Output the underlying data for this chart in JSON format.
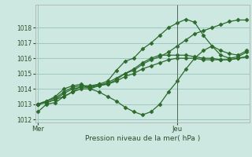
{
  "title": "",
  "xlabel": "Pression niveau de la mer( hPa )",
  "background_color": "#cde8e0",
  "grid_color": "#a0c8c0",
  "line_color": "#2d6b2d",
  "marker": "D",
  "markersize": 2.5,
  "ylim": [
    1011.8,
    1019.5
  ],
  "yticks": [
    1012,
    1013,
    1014,
    1015,
    1016,
    1017,
    1018
  ],
  "xtick_labels": [
    "Mer",
    "Jeu"
  ],
  "xtick_positions": [
    0,
    16
  ],
  "vline_x": 16,
  "n_points": 25,
  "series": [
    [
      1012.5,
      1013.0,
      1013.1,
      1013.5,
      1013.8,
      1014.2,
      1014.2,
      1014.3,
      1014.5,
      1015.2,
      1015.8,
      1016.0,
      1016.6,
      1017.0,
      1017.5,
      1018.0,
      1018.3,
      1018.55,
      1018.35,
      1017.5,
      1016.8,
      1016.2,
      1016.0,
      1016.1,
      1016.4
    ],
    [
      1013.0,
      1013.2,
      1013.4,
      1013.8,
      1014.1,
      1014.2,
      1014.1,
      1014.3,
      1014.3,
      1014.6,
      1015.0,
      1015.3,
      1015.7,
      1016.0,
      1016.2,
      1016.2,
      1016.2,
      1016.2,
      1016.1,
      1016.0,
      1016.0,
      1015.9,
      1015.9,
      1016.0,
      1016.1
    ],
    [
      1013.0,
      1013.1,
      1013.3,
      1013.5,
      1013.8,
      1014.0,
      1014.0,
      1014.2,
      1014.3,
      1014.5,
      1014.8,
      1015.0,
      1015.3,
      1015.5,
      1015.7,
      1015.9,
      1016.0,
      1016.0,
      1016.0,
      1015.9,
      1015.9,
      1015.9,
      1015.9,
      1016.0,
      1016.1
    ],
    [
      1013.0,
      1013.2,
      1013.5,
      1014.0,
      1014.2,
      1014.3,
      1014.0,
      1013.8,
      1013.5,
      1013.2,
      1012.8,
      1012.5,
      1012.3,
      1012.5,
      1013.0,
      1013.8,
      1014.5,
      1015.3,
      1016.0,
      1016.5,
      1016.8,
      1016.5,
      1016.3,
      1016.2,
      1016.5
    ],
    [
      1013.0,
      1013.1,
      1013.3,
      1013.7,
      1014.0,
      1014.1,
      1014.1,
      1014.2,
      1014.4,
      1014.7,
      1015.0,
      1015.2,
      1015.6,
      1015.9,
      1016.1,
      1016.4,
      1016.8,
      1017.2,
      1017.6,
      1017.8,
      1018.0,
      1018.2,
      1018.4,
      1018.5,
      1018.5
    ]
  ]
}
